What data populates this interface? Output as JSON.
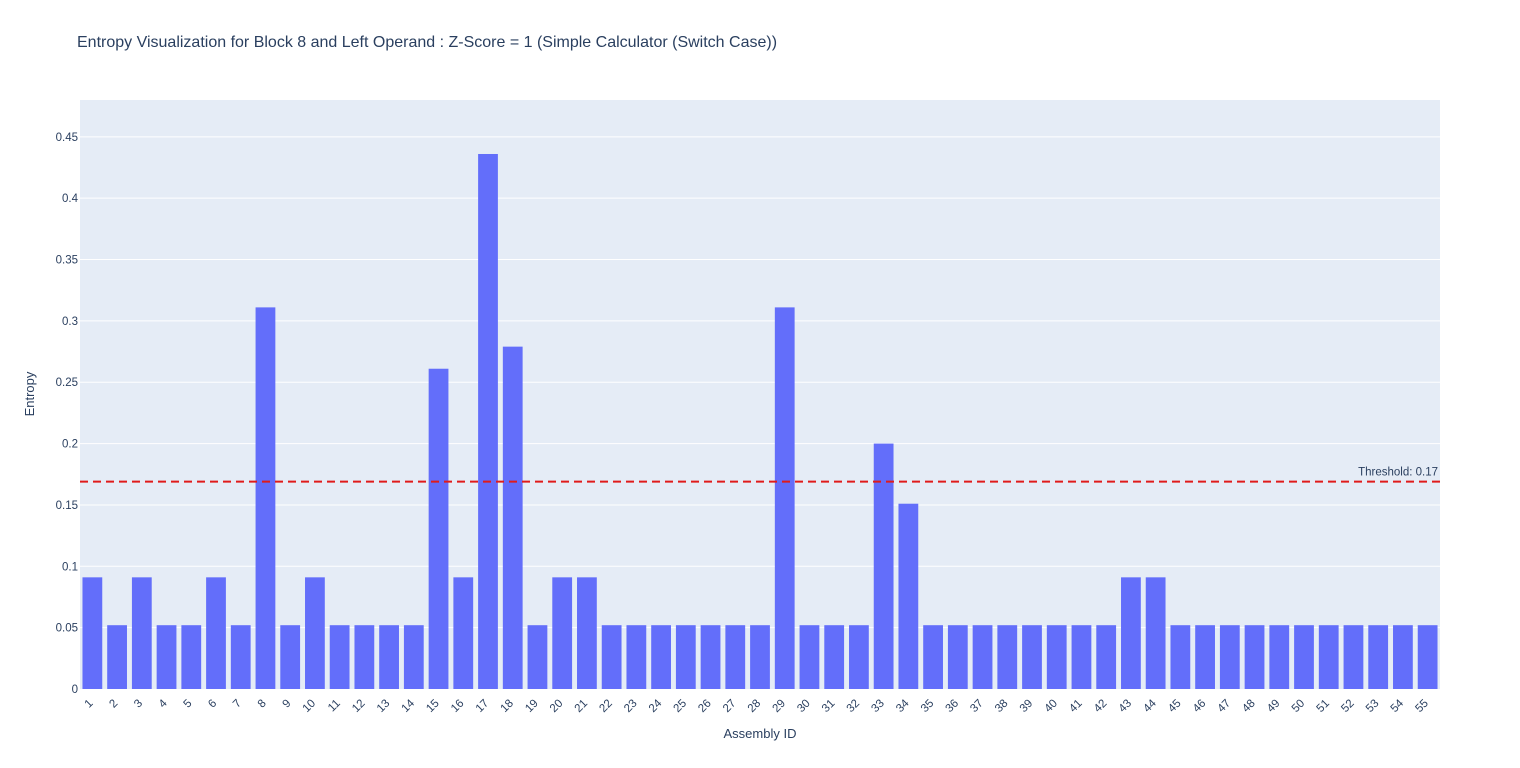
{
  "chart_data": {
    "type": "bar",
    "title": "Entropy Visualization for Block 8 and Left Operand : Z-Score = 1 (Simple Calculator (Switch Case))",
    "xlabel": "Assembly ID",
    "ylabel": "Entropy",
    "ylim": [
      0,
      0.48
    ],
    "yticks": [
      "0",
      "0.05",
      "0.1",
      "0.15",
      "0.2",
      "0.25",
      "0.3",
      "0.35",
      "0.4",
      "0.45"
    ],
    "grid": true,
    "categories": [
      "1",
      "2",
      "3",
      "4",
      "5",
      "6",
      "7",
      "8",
      "9",
      "10",
      "11",
      "12",
      "13",
      "14",
      "15",
      "16",
      "17",
      "18",
      "19",
      "20",
      "21",
      "22",
      "23",
      "24",
      "25",
      "26",
      "27",
      "28",
      "29",
      "30",
      "31",
      "32",
      "33",
      "34",
      "35",
      "36",
      "37",
      "38",
      "39",
      "40",
      "41",
      "42",
      "43",
      "44",
      "45",
      "46",
      "47",
      "48",
      "49",
      "50",
      "51",
      "52",
      "53",
      "54",
      "55"
    ],
    "values": [
      0.091,
      0.052,
      0.091,
      0.052,
      0.052,
      0.091,
      0.052,
      0.311,
      0.052,
      0.091,
      0.052,
      0.052,
      0.052,
      0.052,
      0.261,
      0.091,
      0.436,
      0.279,
      0.052,
      0.091,
      0.091,
      0.052,
      0.052,
      0.052,
      0.052,
      0.052,
      0.052,
      0.052,
      0.311,
      0.052,
      0.052,
      0.052,
      0.2,
      0.151,
      0.052,
      0.052,
      0.052,
      0.052,
      0.052,
      0.052,
      0.052,
      0.052,
      0.091,
      0.091,
      0.052,
      0.052,
      0.052,
      0.052,
      0.052,
      0.052,
      0.052,
      0.052,
      0.052,
      0.052,
      0.052
    ],
    "bar_color": "#636efa",
    "plot_bg": "#e5ecf6",
    "threshold": {
      "value": 0.169,
      "label": "Threshold: 0.17",
      "color": "#e01b1b",
      "style": "dashed"
    }
  }
}
